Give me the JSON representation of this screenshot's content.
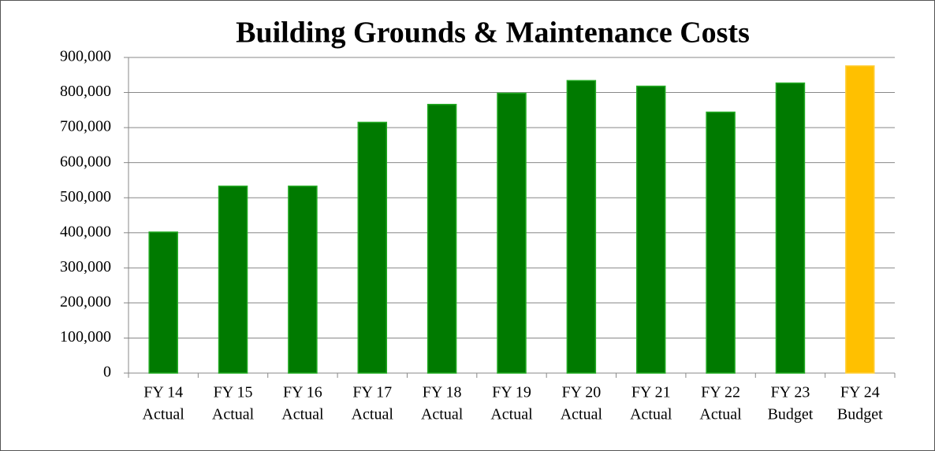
{
  "chart_data": {
    "type": "bar",
    "title": "Building Grounds & Maintenance Costs",
    "categories": [
      [
        "FY 14",
        "Actual"
      ],
      [
        "FY 15",
        "Actual"
      ],
      [
        "FY 16",
        "Actual"
      ],
      [
        "FY 17",
        "Actual"
      ],
      [
        "FY 18",
        "Actual"
      ],
      [
        "FY 19",
        "Actual"
      ],
      [
        "FY 20",
        "Actual"
      ],
      [
        "FY 21",
        "Actual"
      ],
      [
        "FY 22",
        "Actual"
      ],
      [
        "FY 23",
        "Budget"
      ],
      [
        "FY 24",
        "Budget"
      ]
    ],
    "values": [
      402000,
      533000,
      533000,
      715000,
      766000,
      798000,
      834000,
      818000,
      744000,
      827000,
      876000
    ],
    "colors": [
      "#007a00",
      "#007a00",
      "#007a00",
      "#007a00",
      "#007a00",
      "#007a00",
      "#007a00",
      "#007a00",
      "#007a00",
      "#007a00",
      "#ffc000"
    ],
    "ylim": [
      0,
      900000
    ],
    "yticks": [
      0,
      {
        "value": 100000,
        "label": "100,000"
      },
      {
        "value": 200000,
        "label": "200,000"
      },
      {
        "value": 300000,
        "label": "300,000"
      },
      {
        "value": 400000,
        "label": "400,000"
      },
      {
        "value": 500000,
        "label": "500,000"
      },
      {
        "value": 600000,
        "label": "600,000"
      },
      {
        "value": 700000,
        "label": "700,000"
      },
      {
        "value": 800000,
        "label": "800,000"
      },
      {
        "value": 900000,
        "label": "900,000"
      }
    ],
    "grid": true
  }
}
